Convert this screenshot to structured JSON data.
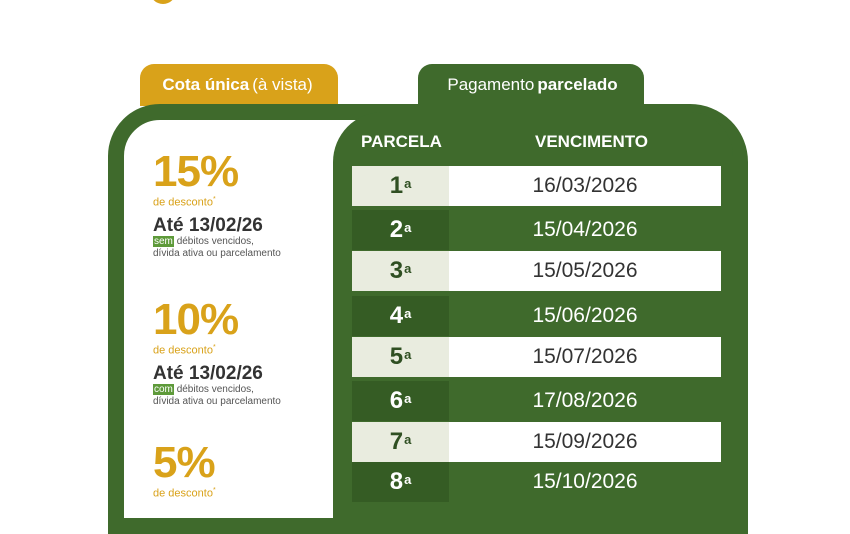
{
  "tabs": {
    "left": {
      "bold": "Cota única",
      "regular": "(à vista)"
    },
    "right": {
      "regular": "Pagamento",
      "bold": "parcelado"
    }
  },
  "table": {
    "headers": {
      "parcela": "PARCELA",
      "vencimento": "VENCIMENTO"
    },
    "rows": [
      {
        "num": "1",
        "ord": "a",
        "date": "16/03/2026"
      },
      {
        "num": "2",
        "ord": "a",
        "date": "15/04/2026"
      },
      {
        "num": "3",
        "ord": "a",
        "date": "15/05/2026"
      },
      {
        "num": "4",
        "ord": "a",
        "date": "15/06/2026"
      },
      {
        "num": "5",
        "ord": "a",
        "date": "15/07/2026"
      },
      {
        "num": "6",
        "ord": "a",
        "date": "17/08/2026"
      },
      {
        "num": "7",
        "ord": "a",
        "date": "15/09/2026"
      },
      {
        "num": "8",
        "ord": "a",
        "date": "15/10/2026"
      }
    ]
  },
  "discounts": [
    {
      "pct": "15%",
      "label": "de desconto",
      "mark": "*",
      "until": "Até 13/02/26",
      "hl": "sem",
      "note": "débitos vencidos, dívida ativa ou parcelamento"
    },
    {
      "pct": "10%",
      "label": "de desconto",
      "mark": "*",
      "until": "Até 13/02/26",
      "hl": "com",
      "note": "débitos vencidos, dívida ativa ou parcelamento"
    },
    {
      "pct": "5%",
      "label": "de desconto",
      "mark": "*"
    }
  ],
  "colors": {
    "green": "#3f6a2c",
    "gold": "#d9a21a"
  }
}
